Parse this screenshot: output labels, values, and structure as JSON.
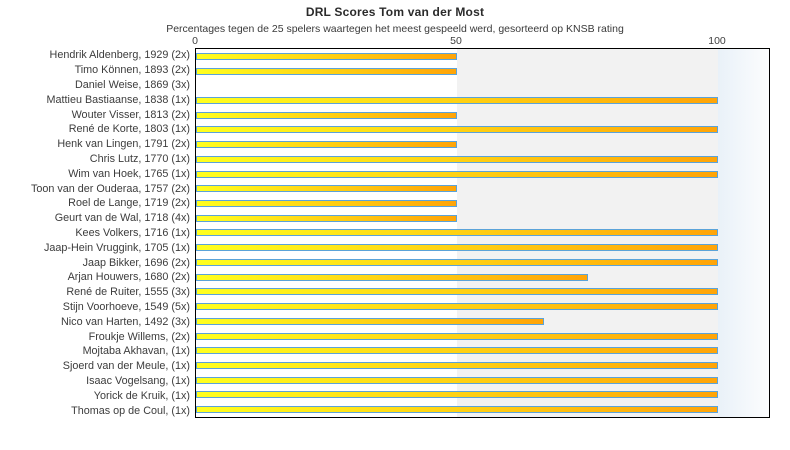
{
  "header": {
    "title": "DRL Scores Tom van der Most",
    "subtitle": "Percentages tegen de 25 spelers waartegen het meest gespeeld werd, gesorteerd op KNSB rating"
  },
  "colors": {
    "bar_fill_start": "#ffff1e",
    "bar_fill_end": "#ffa408",
    "bar_border": "#5ba3d9",
    "band_0_50": "#ffffff",
    "band_50_100": "#f2f2f2",
    "band_over_100_start": "#e9f1f8",
    "band_over_100_end": "#fcfdfe",
    "plot_border": "#000000",
    "text": "#303030"
  },
  "chart_data": {
    "type": "bar",
    "orientation": "horizontal",
    "title": "DRL Scores Tom van der Most",
    "subtitle": "Percentages tegen de 25 spelers waartegen het meest gespeeld werd, gesorteerd op KNSB rating",
    "xlabel": "",
    "ylabel": "",
    "xlim": [
      0,
      110
    ],
    "x_ticks": [
      0,
      50,
      100
    ],
    "grid": false,
    "legend": null,
    "categories": [
      "Hendrik Aldenberg, 1929 (2x)",
      "Timo Können, 1893 (2x)",
      "Daniel Weise, 1869 (3x)",
      "Mattieu Bastiaanse, 1838 (1x)",
      "Wouter Visser, 1813 (2x)",
      "René de Korte, 1803 (1x)",
      "Henk van Lingen, 1791 (2x)",
      "Chris Lutz, 1770 (1x)",
      "Wim van Hoek, 1765 (1x)",
      "Toon van der Ouderaa, 1757 (2x)",
      "Roel de Lange, 1719 (2x)",
      "Geurt van de Wal, 1718 (4x)",
      "Kees Volkers, 1716 (1x)",
      "Jaap-Hein Vruggink, 1705 (1x)",
      "Jaap Bikker, 1696 (2x)",
      "Arjan Houwers, 1680 (2x)",
      "René de Ruiter, 1555 (3x)",
      "Stijn Voorhoeve, 1549 (5x)",
      "Nico van Harten, 1492 (3x)",
      "Froukje Willems,  (2x)",
      "Mojtaba Akhavan,  (1x)",
      "Sjoerd van der Meule,  (1x)",
      "Isaac Vogelsang,  (1x)",
      "Yorick de Kruik,  (1x)",
      "Thomas op de Coul,  (1x)"
    ],
    "values": [
      50,
      50,
      0,
      100,
      50,
      100,
      50,
      100,
      100,
      50,
      50,
      50,
      100,
      100,
      100,
      75,
      100,
      100,
      66.7,
      100,
      100,
      100,
      100,
      100,
      100
    ]
  }
}
